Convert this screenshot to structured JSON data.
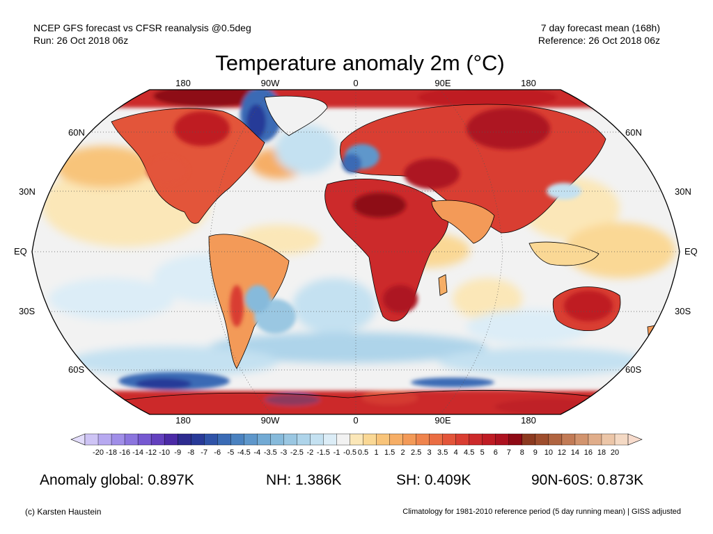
{
  "header": {
    "left_line1": "NCEP GFS forecast vs CFSR reanalysis @0.5deg",
    "left_line2": "Run: 26 Oct 2018 06z",
    "right_line1": "7 day forecast mean (168h)",
    "right_line2": "Reference: 26 Oct 2018 06z"
  },
  "title": "Temperature anomaly 2m (°C)",
  "map": {
    "projection": "Robinson",
    "top_lon_labels": [
      "180",
      "90W",
      "0",
      "90E",
      "180"
    ],
    "bottom_lon_labels": [
      "180",
      "90W",
      "0",
      "90E",
      "180"
    ],
    "lat_labels": [
      "60N",
      "30N",
      "EQ",
      "30S",
      "60S"
    ],
    "graticule": "dotted",
    "colors": {
      "ocean_neutral": "#f2f2f2",
      "warm": "#e8584a",
      "hot": "#b5151c",
      "extreme_hot": "#8c3a20",
      "cool": "#9fd0ee",
      "cold": "#3a6fbf",
      "very_cold": "#283a98",
      "coastline": "#000000"
    }
  },
  "colorbar": {
    "ticks": [
      "-20",
      "-18",
      "-16",
      "-14",
      "-12",
      "-10",
      "-9",
      "-8",
      "-7",
      "-6",
      "-5",
      "-4.5",
      "-4",
      "-3.5",
      "-3",
      "-2.5",
      "-2",
      "-1.5",
      "-1",
      "-0.5",
      "0.5",
      "1",
      "1.5",
      "2",
      "2.5",
      "3",
      "3.5",
      "4",
      "4.5",
      "5",
      "6",
      "7",
      "8",
      "9",
      "10",
      "12",
      "14",
      "16",
      "18",
      "20"
    ],
    "colors": [
      "#cec4f5",
      "#b7a9f0",
      "#a08ee8",
      "#8b75de",
      "#7659d1",
      "#6340be",
      "#4b2aa6",
      "#2d2b8f",
      "#283a98",
      "#2f53a8",
      "#3a6bb5",
      "#4a82c0",
      "#5e97cb",
      "#72aad4",
      "#86badb",
      "#9ac7e2",
      "#aed4ea",
      "#c4e1f1",
      "#dcedf7",
      "#f2f2f2",
      "#fbe7b8",
      "#fad895",
      "#f8c47a",
      "#f6ae66",
      "#f39a58",
      "#ef844d",
      "#ea6d43",
      "#e3553a",
      "#d93e32",
      "#cc2a2b",
      "#bf1c24",
      "#ad1220",
      "#8e0a15",
      "#8c3a20",
      "#9e4d2d",
      "#b06440",
      "#c27b56",
      "#d2946e",
      "#e0ad8a",
      "#ecc6a8",
      "#f4d9c4"
    ],
    "under_color": "#e2dcfa",
    "over_color": "#f8dccd"
  },
  "stats": {
    "global": "Anomaly global: 0.897K",
    "nh": "NH: 1.386K",
    "sh": "SH: 0.409K",
    "arctic": "90N-60S: 0.873K"
  },
  "footer": {
    "credit": "(c) Karsten Haustein",
    "note": "Climatology for 1981-2010 reference period (5 day running mean) | GISS adjusted"
  }
}
